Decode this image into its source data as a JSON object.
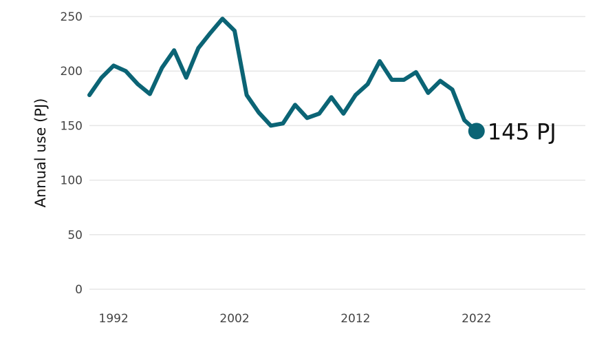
{
  "chart_data": {
    "type": "line",
    "title": "",
    "xlabel": "",
    "ylabel": "Annual use (PJ)",
    "ylim": [
      0,
      250
    ],
    "xlim": [
      1990,
      2031
    ],
    "grid": true,
    "yticks": [
      0,
      50,
      100,
      150,
      200,
      250
    ],
    "xticks": [
      1992,
      2002,
      2012,
      2022
    ],
    "color": "#0b6475",
    "x": [
      1990,
      1991,
      1992,
      1993,
      1994,
      1995,
      1996,
      1997,
      1998,
      1999,
      2000,
      2001,
      2002,
      2003,
      2004,
      2005,
      2006,
      2007,
      2008,
      2009,
      2010,
      2011,
      2012,
      2013,
      2014,
      2015,
      2016,
      2017,
      2018,
      2019,
      2020,
      2021,
      2022
    ],
    "series": [
      {
        "values": [
          178,
          194,
          205,
          200,
          188,
          179,
          203,
          219,
          194,
          221,
          235,
          248,
          237,
          178,
          162,
          150,
          152,
          169,
          157,
          161,
          176,
          161,
          178,
          188,
          209,
          192,
          192,
          199,
          180,
          191,
          183,
          155,
          145
        ]
      }
    ],
    "end_label": "145 PJ"
  }
}
